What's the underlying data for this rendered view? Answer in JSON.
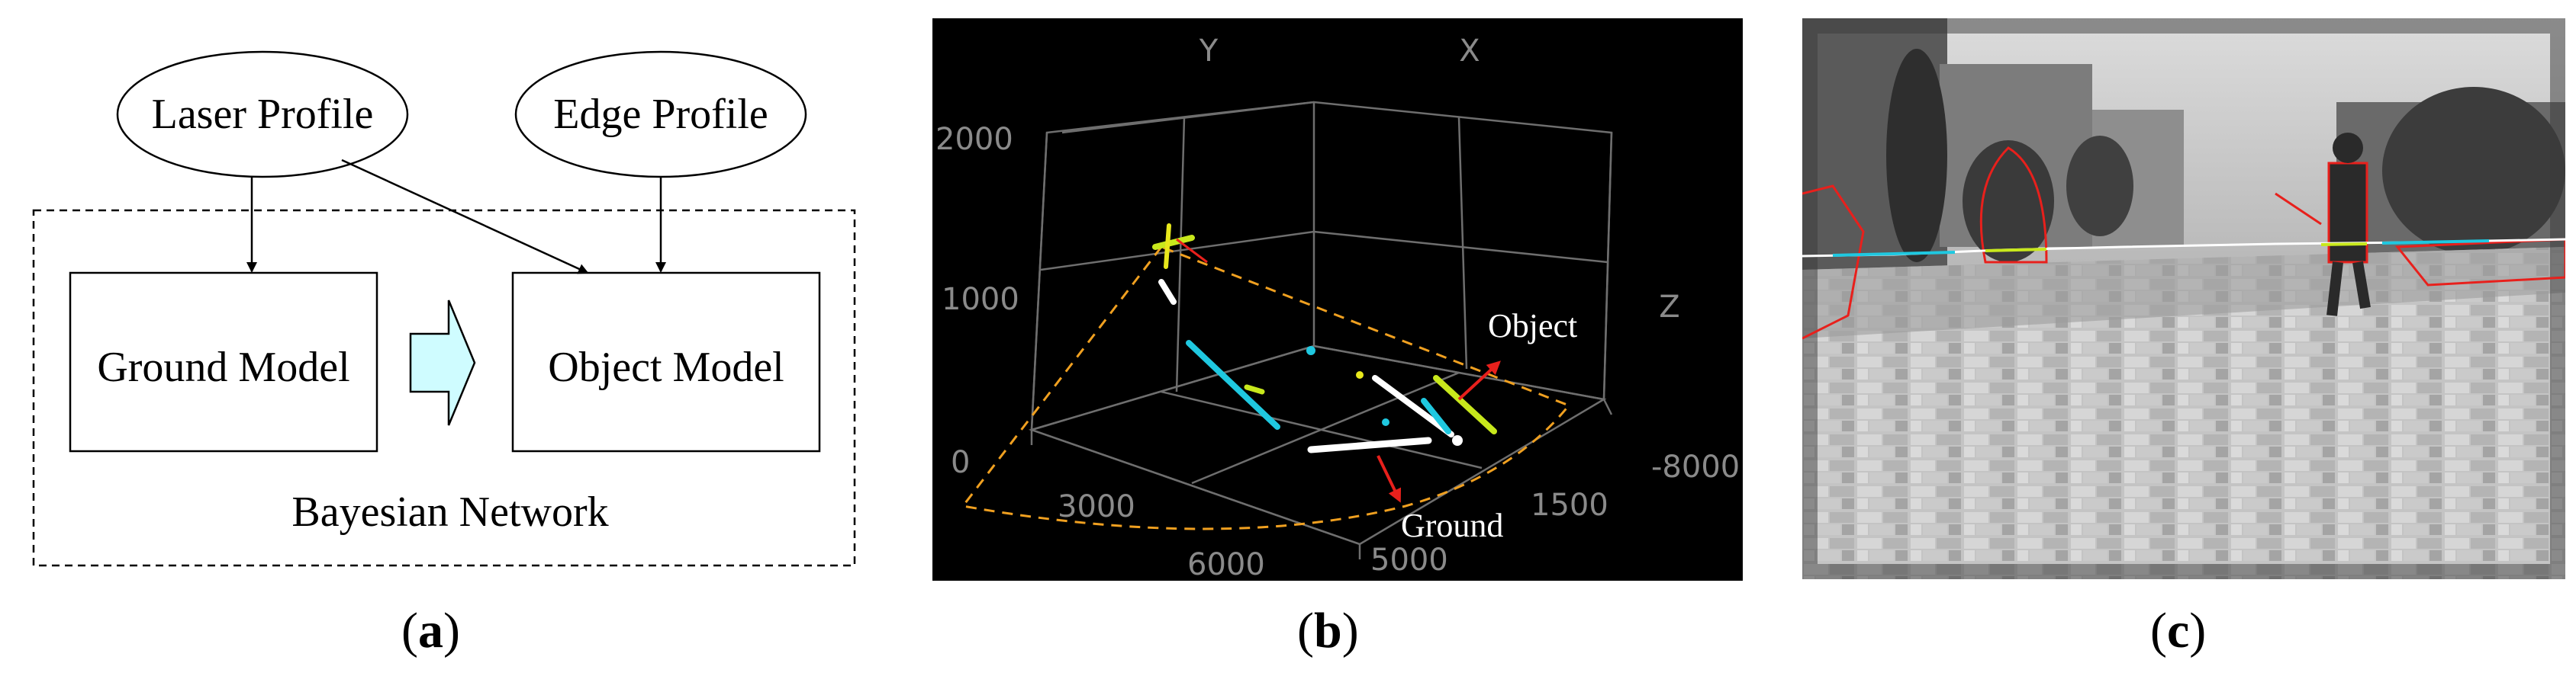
{
  "panel_a": {
    "laser_profile": "Laser Profile",
    "edge_profile": "Edge Profile",
    "ground_model": "Ground Model",
    "object_model": "Object Model",
    "bayesian_network": "Bayesian Network"
  },
  "panel_b": {
    "axis_y": "Y",
    "axis_x": "X",
    "axis_z": "Z",
    "tick_2000": "2000",
    "tick_1000": "1000",
    "tick_0": "0",
    "tick_3000": "3000",
    "tick_6000": "6000",
    "tick_5000": "5000",
    "tick_1500": "1500",
    "tick_neg8000": "-8000",
    "label_object": "Object",
    "label_ground": "Ground"
  },
  "captions": {
    "a": "a",
    "b": "b",
    "c": "c"
  },
  "colors": {
    "arrow_red": "#e8201c",
    "cyan": "#1fc8e0",
    "yellow_green": "#c8e81c",
    "orange_dashed": "#f0a020",
    "block_arrow_fill": "#cffcff"
  }
}
